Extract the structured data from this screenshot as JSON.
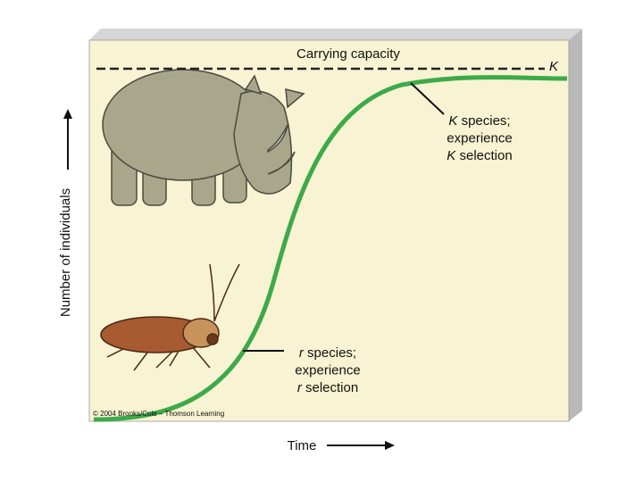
{
  "figure": {
    "top_label": "Carrying capacity",
    "k_marker": "K",
    "k_annotation": [
      [
        "K",
        " species;"
      ],
      [
        "experience"
      ],
      [
        "K",
        " selection"
      ]
    ],
    "r_annotation": [
      [
        "r",
        " species;"
      ],
      [
        "experience"
      ],
      [
        "r",
        " selection"
      ]
    ],
    "y_axis_label": "Number of individuals",
    "x_axis_label": "Time",
    "credit": "© 2004 Brooks/Cole – Thomson Learning"
  }
}
